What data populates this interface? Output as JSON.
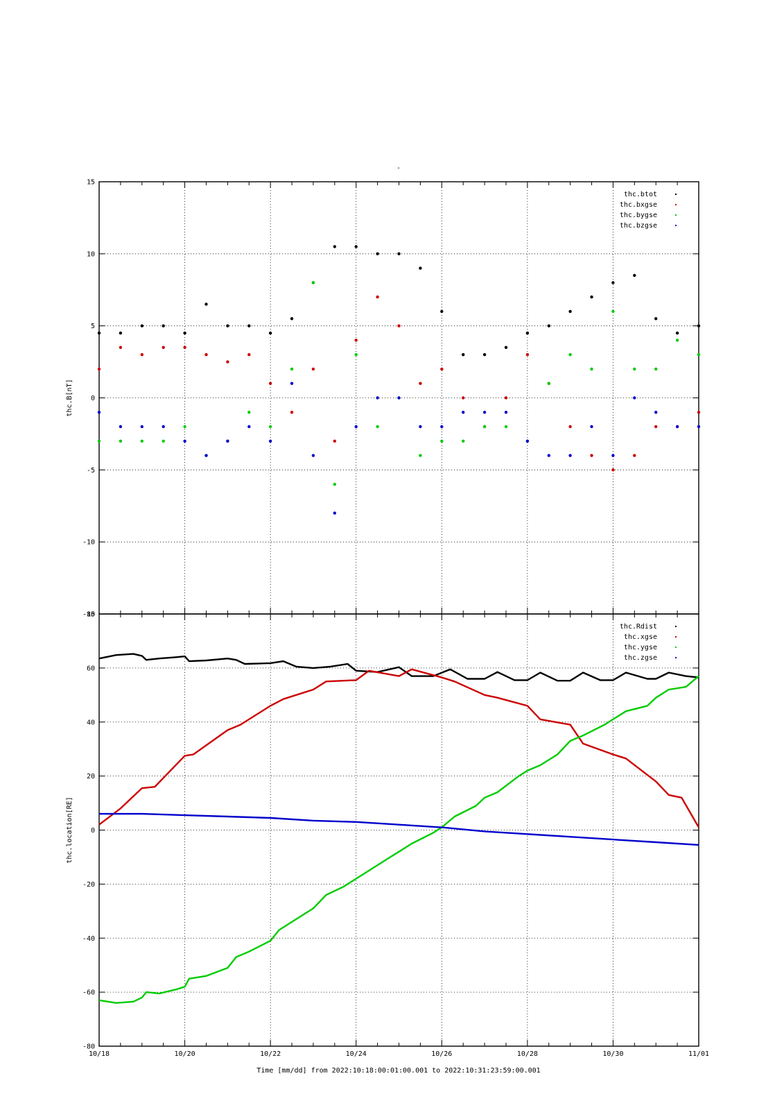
{
  "title": "-",
  "chart_data": [
    {
      "type": "scatter",
      "ylabel": "thc.B[nT]",
      "ylim": [
        -15,
        15
      ],
      "yticks": [
        "15",
        "10",
        "5",
        "0",
        "-5",
        "-10",
        "-15"
      ],
      "grid": true,
      "legend_placement": "top-right",
      "series": [
        {
          "name": "thc.btot",
          "color": "#000000",
          "x": [
            0,
            0.5,
            1,
            1.5,
            2,
            2.5,
            3,
            3.5,
            4,
            4.5,
            5,
            5.5,
            6,
            6.5,
            7,
            7.5,
            8,
            8.5,
            9,
            9.5,
            10,
            10.5,
            11,
            11.5,
            12,
            12.5,
            13,
            13.5,
            14
          ],
          "y": [
            4.5,
            4.5,
            5,
            5,
            4.5,
            6.5,
            5,
            5,
            4.5,
            5.5,
            8,
            10.5,
            10.5,
            10,
            10,
            9,
            6,
            3,
            3,
            3.5,
            4.5,
            5,
            6,
            7,
            8,
            8.5,
            5.5,
            4.5,
            5
          ]
        },
        {
          "name": "thc.bxgse",
          "color": "#cc0000",
          "x": [
            0,
            0.5,
            1,
            1.5,
            2,
            2.5,
            3,
            3.5,
            4,
            4.5,
            5,
            5.5,
            6,
            6.5,
            7,
            7.5,
            8,
            8.5,
            9,
            9.5,
            10,
            10.5,
            11,
            11.5,
            12,
            12.5,
            13,
            13.5,
            14
          ],
          "y": [
            2,
            3.5,
            3,
            3.5,
            3.5,
            3,
            2.5,
            3,
            1,
            -1,
            2,
            -3,
            4,
            7,
            5,
            1,
            2,
            0,
            -2,
            0,
            3,
            1,
            -2,
            -4,
            -5,
            -4,
            -2,
            -2,
            -1
          ]
        },
        {
          "name": "thc.bygse",
          "color": "#00cc00",
          "x": [
            0,
            0.5,
            1,
            1.5,
            2,
            2.5,
            3,
            3.5,
            4,
            4.5,
            5,
            5.5,
            6,
            6.5,
            7,
            7.5,
            8,
            8.5,
            9,
            9.5,
            10,
            10.5,
            11,
            11.5,
            12,
            12.5,
            13,
            13.5,
            14
          ],
          "y": [
            -3,
            -3,
            -3,
            -3,
            -2,
            -4,
            -3,
            -1,
            -2,
            2,
            8,
            -6,
            3,
            -2,
            0,
            -4,
            -3,
            -3,
            -2,
            -2,
            -3,
            1,
            3,
            2,
            6,
            2,
            2,
            4,
            3
          ]
        },
        {
          "name": "thc.bzgse",
          "color": "#0000cc",
          "x": [
            0,
            0.5,
            1,
            1.5,
            2,
            2.5,
            3,
            3.5,
            4,
            4.5,
            5,
            5.5,
            6,
            6.5,
            7,
            7.5,
            8,
            8.5,
            9,
            9.5,
            10,
            10.5,
            11,
            11.5,
            12,
            12.5,
            13,
            13.5,
            14
          ],
          "y": [
            -1,
            -2,
            -2,
            -2,
            -3,
            -4,
            -3,
            -2,
            -3,
            1,
            -4,
            -8,
            -2,
            0,
            0,
            -2,
            -2,
            -1,
            -1,
            -1,
            -3,
            -4,
            -4,
            -2,
            -4,
            0,
            -1,
            -2,
            -2
          ]
        }
      ]
    },
    {
      "type": "line",
      "ylabel": "thc.location[RE]",
      "xlabel": "Time [mm/dd]  from 2022:10:18:00:01:00.001  to  2022:10:31:23:59:00.001",
      "ylim": [
        -80,
        80
      ],
      "yticks": [
        "80",
        "60",
        "40",
        "20",
        "0",
        "-20",
        "-40",
        "-60",
        "-80"
      ],
      "xlim": [
        "10/18",
        "11/01"
      ],
      "xticks": [
        "10/18",
        "10/20",
        "10/22",
        "10/24",
        "10/26",
        "10/28",
        "10/30",
        "11/01"
      ],
      "grid": true,
      "legend_placement": "top-right",
      "series": [
        {
          "name": "thc.Rdist",
          "color": "#000000",
          "x": [
            0,
            0.4,
            0.8,
            1.0,
            1.1,
            1.4,
            1.8,
            2.0,
            2.1,
            2.5,
            3.0,
            3.2,
            3.4,
            4.0,
            4.3,
            4.6,
            5.0,
            5.4,
            5.8,
            6.0,
            6.5,
            7.0,
            7.3,
            7.8,
            8.2,
            8.6,
            9.0,
            9.3,
            9.7,
            10.0,
            10.3,
            10.7,
            11.0,
            11.3,
            11.7,
            12.0,
            12.3,
            12.8,
            13.0,
            13.3,
            13.7,
            14.0
          ],
          "y": [
            63.5,
            64.8,
            65.2,
            64.5,
            63,
            63.5,
            64,
            64.3,
            62.5,
            62.8,
            63.5,
            63,
            61.5,
            61.8,
            62.5,
            60.5,
            60,
            60.5,
            61.5,
            59,
            58.5,
            60.3,
            57,
            57,
            59.5,
            56,
            56,
            58.5,
            55.5,
            55.5,
            58.3,
            55.3,
            55.3,
            58.3,
            55.5,
            55.5,
            58.3,
            56,
            56,
            58.3,
            57,
            56.5
          ]
        },
        {
          "name": "thc.xgse",
          "color": "#cc0000",
          "x": [
            0,
            0.5,
            1.0,
            1.3,
            2.0,
            2.2,
            3.0,
            3.3,
            4.0,
            4.3,
            5.0,
            5.3,
            6.0,
            6.3,
            7.0,
            7.3,
            8.0,
            8.3,
            9.0,
            9.3,
            10.0,
            10.3,
            11.0,
            11.3,
            12.0,
            12.3,
            13.0,
            13.3,
            13.6,
            14.0
          ],
          "y": [
            2,
            8,
            15.5,
            16,
            27.5,
            28,
            37,
            39,
            46,
            48.5,
            52,
            55,
            55.5,
            59,
            57,
            59.5,
            56.5,
            55,
            50,
            49,
            46,
            41,
            39,
            32,
            28,
            26.5,
            18,
            13,
            12,
            1
          ]
        },
        {
          "name": "thc.ygse",
          "color": "#00cc00",
          "x": [
            0,
            0.4,
            0.8,
            1.0,
            1.1,
            1.4,
            1.8,
            2.0,
            2.1,
            2.5,
            3.0,
            3.2,
            3.5,
            4.0,
            4.2,
            4.5,
            5.0,
            5.3,
            5.7,
            6.0,
            6.3,
            6.8,
            7.0,
            7.3,
            7.8,
            8.0,
            8.3,
            8.8,
            9.0,
            9.3,
            9.8,
            10.0,
            10.3,
            10.7,
            11.0,
            11.3,
            11.8,
            12.0,
            12.3,
            12.8,
            13.0,
            13.3,
            13.7,
            14.0
          ],
          "y": [
            -63,
            -64,
            -63.5,
            -62,
            -60,
            -60.5,
            -59,
            -58,
            -55,
            -54,
            -51,
            -47,
            -45,
            -41,
            -37,
            -34,
            -29,
            -24,
            -21,
            -18,
            -15,
            -10,
            -8,
            -5,
            -1,
            1,
            5,
            9,
            12,
            14,
            20,
            22,
            24,
            28,
            33,
            35,
            39,
            41,
            44,
            46,
            49,
            52,
            53,
            57
          ]
        },
        {
          "name": "thc.zgse",
          "color": "#0000cc",
          "x": [
            0,
            1,
            2,
            3,
            4,
            5,
            6,
            7,
            8,
            9,
            10,
            11,
            12,
            13,
            14
          ],
          "y": [
            6,
            6,
            5.5,
            5,
            4.5,
            3.5,
            3,
            2,
            1,
            -0.5,
            -1.5,
            -2.5,
            -3.5,
            -4.5,
            -5.5
          ]
        }
      ]
    }
  ]
}
